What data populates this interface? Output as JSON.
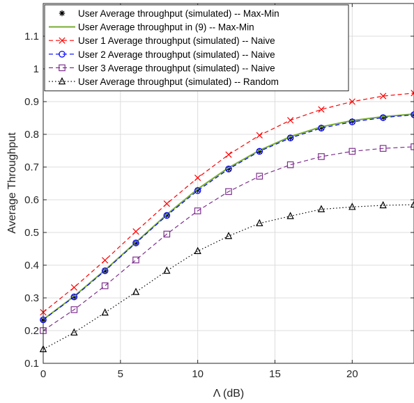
{
  "chart_data": {
    "type": "line",
    "title": "",
    "xlabel": "Λ (dB)",
    "ylabel": "Average Throughput",
    "xlim": [
      0,
      24
    ],
    "ylim": [
      0.1,
      1.2
    ],
    "xticks": [
      0,
      5,
      10,
      15,
      20
    ],
    "yticks": [
      0.1,
      0.2,
      0.3,
      0.4,
      0.5,
      0.6,
      0.7,
      0.8,
      0.9,
      1,
      1.1
    ],
    "grid": true,
    "legend_position": "top-left",
    "x": [
      0,
      2,
      4,
      6,
      8,
      10,
      12,
      14,
      16,
      18,
      20,
      22,
      24
    ],
    "series": [
      {
        "name": "User Average throughput (simulated) -- Max-Min",
        "color": "#000000",
        "marker": "asterisk",
        "line": "none",
        "values": [
          0.232,
          0.303,
          0.383,
          0.468,
          0.553,
          0.63,
          0.695,
          0.748,
          0.79,
          0.82,
          0.84,
          0.852,
          0.86
        ]
      },
      {
        "name": "User Average throughput in (9) -- Max-Min",
        "color": "#77ac30",
        "marker": "none",
        "line": "solid",
        "values": [
          0.234,
          0.305,
          0.385,
          0.47,
          0.555,
          0.633,
          0.698,
          0.751,
          0.793,
          0.823,
          0.842,
          0.854,
          0.862
        ]
      },
      {
        "name": "User 1 Average throughput (simulated) -- Naive",
        "color": "#ff0000",
        "marker": "x",
        "line": "dashed",
        "values": [
          0.256,
          0.332,
          0.415,
          0.503,
          0.588,
          0.667,
          0.738,
          0.797,
          0.843,
          0.876,
          0.9,
          0.917,
          0.926
        ]
      },
      {
        "name": "User 2 Average throughput (simulated) -- Naive",
        "color": "#0000ff",
        "marker": "circle",
        "line": "dashed",
        "values": [
          0.233,
          0.303,
          0.383,
          0.468,
          0.552,
          0.628,
          0.694,
          0.748,
          0.789,
          0.819,
          0.838,
          0.851,
          0.86
        ]
      },
      {
        "name": "User 3 Average throughput (simulated) -- Naive",
        "color": "#7e2f8e",
        "marker": "square",
        "line": "dashed",
        "values": [
          0.2,
          0.264,
          0.337,
          0.416,
          0.495,
          0.566,
          0.625,
          0.672,
          0.707,
          0.732,
          0.748,
          0.757,
          0.762
        ]
      },
      {
        "name": "User Average throughput (simulated) -- Random",
        "color": "#000000",
        "marker": "triangle",
        "line": "dotted",
        "values": [
          0.143,
          0.194,
          0.255,
          0.318,
          0.383,
          0.443,
          0.489,
          0.528,
          0.55,
          0.571,
          0.578,
          0.583,
          0.585
        ]
      }
    ]
  }
}
